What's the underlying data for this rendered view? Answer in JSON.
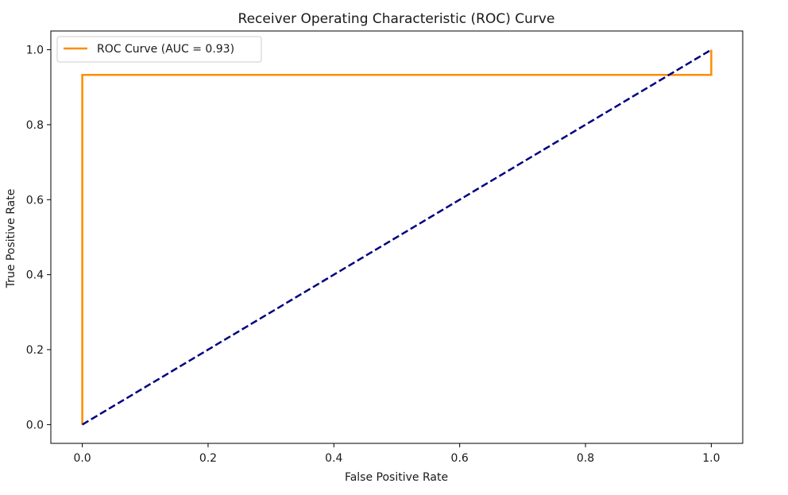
{
  "chart_data": {
    "type": "line",
    "title": "Receiver Operating Characteristic (ROC) Curve",
    "xlabel": "False Positive Rate",
    "ylabel": "True Positive Rate",
    "xlim": [
      -0.05,
      1.05
    ],
    "ylim": [
      -0.05,
      1.05
    ],
    "xticks": [
      0.0,
      0.2,
      0.4,
      0.6,
      0.8,
      1.0
    ],
    "yticks": [
      0.0,
      0.2,
      0.4,
      0.6,
      0.8,
      1.0
    ],
    "xtick_labels": [
      "0.0",
      "0.2",
      "0.4",
      "0.6",
      "0.8",
      "1.0"
    ],
    "ytick_labels": [
      "0.0",
      "0.2",
      "0.4",
      "0.6",
      "0.8",
      "1.0"
    ],
    "grid": false,
    "legend_position": "top-left",
    "series": [
      {
        "name": "ROC Curve (AUC = 0.93)",
        "color": "#ff8c00",
        "style": "solid",
        "x": [
          0.0,
          0.0,
          1.0,
          1.0
        ],
        "y": [
          0.0,
          0.933,
          0.933,
          1.0
        ]
      },
      {
        "color": "#000080",
        "style": "dashed",
        "x": [
          0.0,
          1.0
        ],
        "y": [
          0.0,
          1.0
        ]
      }
    ]
  }
}
